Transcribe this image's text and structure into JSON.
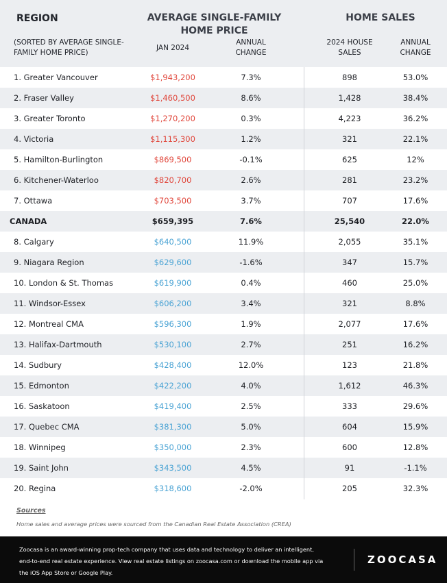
{
  "header": {
    "region": "REGION",
    "sort_note": "(SORTED BY AVERAGE SINGLE-FAMILY HOME PRICE)",
    "price_group": "AVERAGE SINGLE-FAMILY HOME PRICE",
    "jan_2024": "JAN 2024",
    "price_change": "ANNUAL CHANGE",
    "sales_group": "HOME SALES",
    "house_sales": "2024 HOUSE SALES",
    "sales_change": "ANNUAL CHANGE"
  },
  "rows_above": [
    [
      "1. Greater Vancouver",
      "$1,943,200",
      "7.3%",
      "898",
      "53.0%"
    ],
    [
      "2. Fraser Valley",
      "$1,460,500",
      "8.6%",
      "1,428",
      "38.4%"
    ],
    [
      "3. Greater Toronto",
      "$1,270,200",
      "0.3%",
      "4,223",
      "36.2%"
    ],
    [
      "4. Victoria",
      "$1,115,300",
      "1.2%",
      "321",
      "22.1%"
    ],
    [
      "5. Hamilton-Burlington",
      "$869,500",
      "-0.1%",
      "625",
      "12%"
    ],
    [
      "6. Kitchener-Waterloo",
      "$820,700",
      "2.6%",
      "281",
      "23.2%"
    ],
    [
      "7. Ottawa",
      "$703,500",
      "3.7%",
      "707",
      "17.6%"
    ]
  ],
  "total": [
    "CANADA",
    "$659,395",
    "7.6%",
    "25,540",
    "22.0%"
  ],
  "rows_below": [
    [
      "8. Calgary",
      "$640,500",
      "11.9%",
      "2,055",
      "35.1%"
    ],
    [
      "9. Niagara Region",
      "$629,600",
      "-1.6%",
      "347",
      "15.7%"
    ],
    [
      "10. London & St. Thomas",
      "$619,900",
      "0.4%",
      "460",
      "25.0%"
    ],
    [
      "11. Windsor-Essex",
      "$606,200",
      "3.4%",
      "321",
      "8.8%"
    ],
    [
      "12. Montreal CMA",
      "$596,300",
      "1.9%",
      "2,077",
      "17.6%"
    ],
    [
      "13. Halifax-Dartmouth",
      "$530,100",
      "2.7%",
      "251",
      "16.2%"
    ],
    [
      "14. Sudbury",
      "$428,400",
      "12.0%",
      "123",
      "21.8%"
    ],
    [
      "15. Edmonton",
      "$422,200",
      "4.0%",
      "1,612",
      "46.3%"
    ],
    [
      "16. Saskatoon",
      "$419,400",
      "2.5%",
      "333",
      "29.6%"
    ],
    [
      "17. Quebec CMA",
      "$381,300",
      "5.0%",
      "604",
      "15.9%"
    ],
    [
      "18. Winnipeg",
      "$350,000",
      "2.3%",
      "600",
      "12.8%"
    ],
    [
      "19. Saint John",
      "$343,500",
      "4.5%",
      "91",
      "-1.1%"
    ],
    [
      "20. Regina",
      "$318,600",
      "-2.0%",
      "205",
      "32.3%"
    ]
  ],
  "sources": {
    "title": "Sources",
    "text": "Home sales and average prices were sourced from the Canadian Real Estate Association (CREA)"
  },
  "footer": {
    "lines": [
      "Zoocasa is an award-winning prop-tech company that uses data and technology to deliver an intelligent,",
      "end-to-end real estate experience. View real estate listings on zoocasa.com or download the mobile app via",
      "the iOS App Store or Google Play."
    ],
    "logo": "ZOOCASA"
  }
}
